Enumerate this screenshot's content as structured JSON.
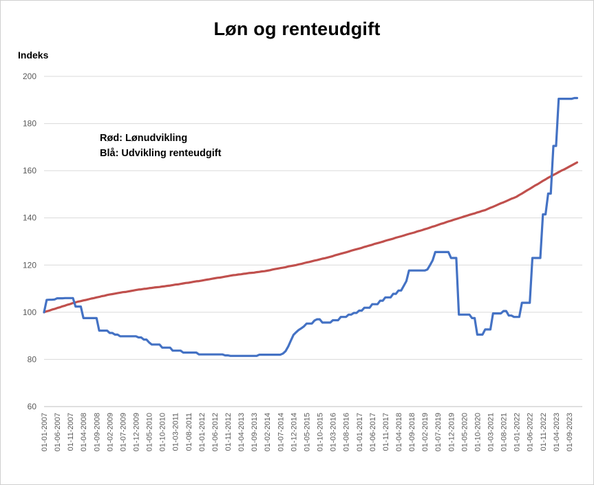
{
  "window": {
    "background": "#ffffff",
    "border_color": "#cfcfcf"
  },
  "header": {
    "title": "Løn og renteudgift",
    "axis_unit_label": "Indeks"
  },
  "annotation": {
    "line1": "Rød: Lønudvikling",
    "line2": "Blå: Udvikling renteudgift"
  },
  "chart_data": {
    "type": "line",
    "title": "Løn og renteudgift",
    "xlabel": "",
    "ylabel": "Indeks",
    "ylim": [
      60,
      200
    ],
    "y_ticks": [
      60,
      80,
      100,
      120,
      140,
      160,
      180,
      200
    ],
    "grid": "horizontal",
    "gridline_color": "#d9d9d9",
    "axis_line_color": "#bfbfbf",
    "tick_label_color": "#595959",
    "legend_position": "text-annotation-top-left",
    "x_start": "2007-01",
    "x_frequency": "monthly",
    "n_points": 204,
    "x_tick_every": 5,
    "x_tick_labels": [
      "01-01-2007",
      "01-06-2007",
      "01-11-2007",
      "01-04-2008",
      "01-09-2008",
      "01-02-2009",
      "01-07-2009",
      "01-12-2009",
      "01-05-2010",
      "01-10-2010",
      "01-03-2011",
      "01-08-2011",
      "01-01-2012",
      "01-06-2012",
      "01-11-2012",
      "01-04-2013",
      "01-09-2013",
      "01-02-2014",
      "01-07-2014",
      "01-12-2014",
      "01-05-2015",
      "01-10-2015",
      "01-03-2016",
      "01-08-2016",
      "01-01-2017",
      "01-06-2017",
      "01-11-2017",
      "01-04-2018",
      "01-09-2018",
      "01-02-2019",
      "01-07-2019",
      "01-12-2019",
      "01-05-2020",
      "01-10-2020",
      "01-03-2021",
      "01-08-2021",
      "01-01-2022",
      "01-06-2022",
      "01-11-2022",
      "01-04-2023",
      "01-09-2023"
    ],
    "series": [
      {
        "name": "Lønudvikling",
        "color": "#c0504d",
        "values": [
          100.0,
          100.4,
          100.7,
          101.1,
          101.4,
          101.8,
          102.1,
          102.5,
          102.8,
          103.2,
          103.5,
          103.9,
          104.2,
          104.5,
          104.7,
          105.0,
          105.2,
          105.5,
          105.8,
          106.0,
          106.3,
          106.5,
          106.8,
          107.0,
          107.3,
          107.5,
          107.7,
          107.9,
          108.1,
          108.3,
          108.5,
          108.6,
          108.8,
          109.0,
          109.2,
          109.4,
          109.6,
          109.7,
          109.9,
          110.0,
          110.2,
          110.3,
          110.5,
          110.6,
          110.7,
          110.9,
          111.0,
          111.2,
          111.3,
          111.5,
          111.7,
          111.8,
          112.0,
          112.2,
          112.4,
          112.5,
          112.7,
          112.9,
          113.1,
          113.2,
          113.4,
          113.6,
          113.8,
          114.0,
          114.2,
          114.4,
          114.6,
          114.7,
          114.9,
          115.1,
          115.3,
          115.5,
          115.7,
          115.8,
          116.0,
          116.1,
          116.3,
          116.4,
          116.6,
          116.7,
          116.8,
          117.0,
          117.1,
          117.3,
          117.4,
          117.6,
          117.8,
          118.1,
          118.3,
          118.5,
          118.7,
          118.9,
          119.1,
          119.4,
          119.6,
          119.8,
          120.0,
          120.3,
          120.5,
          120.8,
          121.1,
          121.3,
          121.6,
          121.9,
          122.1,
          122.4,
          122.7,
          122.9,
          123.2,
          123.5,
          123.8,
          124.2,
          124.5,
          124.8,
          125.1,
          125.4,
          125.7,
          126.1,
          126.4,
          126.7,
          127.0,
          127.3,
          127.7,
          128.0,
          128.3,
          128.6,
          129.0,
          129.3,
          129.6,
          129.9,
          130.3,
          130.6,
          130.9,
          131.2,
          131.6,
          131.9,
          132.2,
          132.5,
          132.9,
          133.2,
          133.5,
          133.8,
          134.2,
          134.5,
          134.8,
          135.2,
          135.5,
          135.9,
          136.3,
          136.6,
          137.0,
          137.4,
          137.7,
          138.1,
          138.5,
          138.8,
          139.2,
          139.5,
          139.9,
          140.2,
          140.6,
          140.9,
          141.3,
          141.6,
          141.9,
          142.3,
          142.6,
          143.0,
          143.3,
          143.8,
          144.3,
          144.7,
          145.2,
          145.7,
          146.2,
          146.6,
          147.1,
          147.6,
          148.1,
          148.5,
          149.0,
          149.7,
          150.3,
          151.0,
          151.7,
          152.3,
          153.0,
          153.7,
          154.3,
          155.0,
          155.7,
          156.3,
          157.0,
          157.6,
          158.2,
          158.8,
          159.4,
          160.0,
          160.5,
          161.1,
          161.7,
          162.3,
          162.9,
          163.5
        ]
      },
      {
        "name": "Udvikling renteudgift",
        "color": "#4472c4",
        "values": [
          100.0,
          105.2,
          105.3,
          105.3,
          105.4,
          105.9,
          105.9,
          105.9,
          106.0,
          106.0,
          106.0,
          106.0,
          102.4,
          102.4,
          102.4,
          97.5,
          97.5,
          97.5,
          97.5,
          97.5,
          97.5,
          92.2,
          92.2,
          92.2,
          92.2,
          91.2,
          91.2,
          90.5,
          90.5,
          89.8,
          89.8,
          89.8,
          89.8,
          89.8,
          89.8,
          89.8,
          89.3,
          89.3,
          88.4,
          88.4,
          87.2,
          86.3,
          86.3,
          86.3,
          86.3,
          85.0,
          85.0,
          85.0,
          85.0,
          83.7,
          83.7,
          83.7,
          83.7,
          82.9,
          82.9,
          82.9,
          82.9,
          82.9,
          82.9,
          82.1,
          82.1,
          82.1,
          82.1,
          82.1,
          82.1,
          82.1,
          82.1,
          82.1,
          82.1,
          81.7,
          81.7,
          81.5,
          81.5,
          81.5,
          81.5,
          81.5,
          81.5,
          81.5,
          81.5,
          81.5,
          81.5,
          81.5,
          82.0,
          82.0,
          82.0,
          82.0,
          82.0,
          82.0,
          82.0,
          82.0,
          82.0,
          82.5,
          83.5,
          85.5,
          88.0,
          90.4,
          91.5,
          92.5,
          93.2,
          94.0,
          95.2,
          95.2,
          95.2,
          96.5,
          97.0,
          97.0,
          95.6,
          95.6,
          95.6,
          95.6,
          96.6,
          96.6,
          96.6,
          98.0,
          98.0,
          98.0,
          99.0,
          99.0,
          99.7,
          99.7,
          100.7,
          100.7,
          101.9,
          101.9,
          101.9,
          103.4,
          103.4,
          103.4,
          104.9,
          104.9,
          106.3,
          106.3,
          106.3,
          107.8,
          107.8,
          109.2,
          109.2,
          111.2,
          113.2,
          117.7,
          117.7,
          117.7,
          117.7,
          117.7,
          117.7,
          117.7,
          118.1,
          120.0,
          122.0,
          125.5,
          125.5,
          125.5,
          125.5,
          125.5,
          125.5,
          123.0,
          123.0,
          123.0,
          99.0,
          99.0,
          99.0,
          99.0,
          99.0,
          97.5,
          97.5,
          90.5,
          90.5,
          90.5,
          92.7,
          92.7,
          92.7,
          99.5,
          99.5,
          99.5,
          99.5,
          100.5,
          100.5,
          98.6,
          98.6,
          98.0,
          98.0,
          98.0,
          104.0,
          104.0,
          104.0,
          104.0,
          123.0,
          123.0,
          123.0,
          123.0,
          141.5,
          141.5,
          150.3,
          150.3,
          170.5,
          170.5,
          190.5,
          190.5,
          190.5,
          190.5,
          190.5,
          190.5,
          190.8,
          190.8
        ]
      }
    ]
  }
}
